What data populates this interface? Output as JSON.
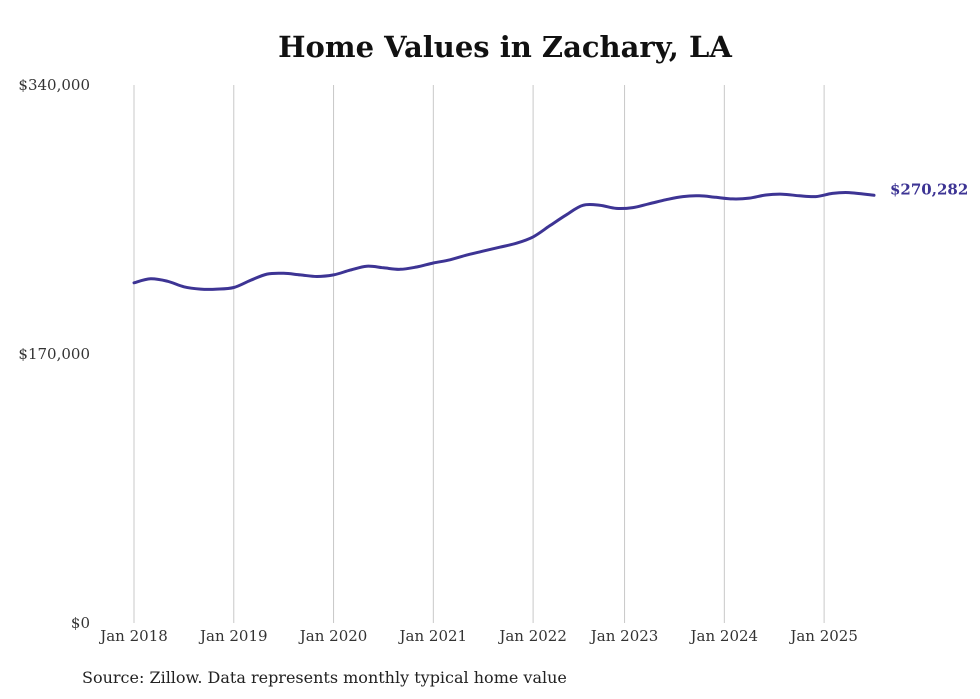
{
  "chart_data": {
    "type": "line",
    "title": "Home Values in Zachary, LA",
    "source": "Source: Zillow. Data represents monthly typical home value",
    "ylim": [
      0,
      340000
    ],
    "y_ticks": [
      {
        "value": 0,
        "label": "$0"
      },
      {
        "value": 170000,
        "label": "$170,000"
      },
      {
        "value": 340000,
        "label": "$340,000"
      }
    ],
    "xlim": [
      "2018-01",
      "2025-06"
    ],
    "x_ticks": [
      {
        "date": "2018-01",
        "label": "Jan 2018"
      },
      {
        "date": "2019-01",
        "label": "Jan 2019"
      },
      {
        "date": "2020-01",
        "label": "Jan 2020"
      },
      {
        "date": "2021-01",
        "label": "Jan 2021"
      },
      {
        "date": "2022-01",
        "label": "Jan 2022"
      },
      {
        "date": "2022-12",
        "label": "Jan 2023"
      },
      {
        "date": "2023-12",
        "label": "Jan 2024"
      },
      {
        "date": "2024-12",
        "label": "Jan 2025"
      }
    ],
    "grid": {
      "vertical": true,
      "horizontal": false
    },
    "line_color": "#3d3494",
    "series": [
      {
        "x": [
          "2018-01",
          "2018-03",
          "2018-05",
          "2018-07",
          "2018-09",
          "2018-11",
          "2019-01",
          "2019-03",
          "2019-05",
          "2019-07",
          "2019-09",
          "2019-11",
          "2020-01",
          "2020-03",
          "2020-05",
          "2020-07",
          "2020-09",
          "2020-11",
          "2021-01",
          "2021-03",
          "2021-05",
          "2021-07",
          "2021-09",
          "2021-11",
          "2022-01",
          "2022-03",
          "2022-05",
          "2022-07",
          "2022-09",
          "2022-11",
          "2023-01",
          "2023-03",
          "2023-05",
          "2023-07",
          "2023-09",
          "2023-11",
          "2024-01",
          "2024-03",
          "2024-05",
          "2024-07",
          "2024-09",
          "2024-11",
          "2025-01",
          "2025-03",
          "2025-06"
        ],
        "values": [
          215000,
          217500,
          216000,
          212500,
          211000,
          211000,
          212000,
          216500,
          220500,
          221000,
          220000,
          219000,
          220000,
          223000,
          225500,
          224500,
          223500,
          225000,
          227500,
          229500,
          232500,
          235000,
          237500,
          240000,
          244000,
          251000,
          258000,
          264000,
          264000,
          262000,
          262500,
          265000,
          267500,
          269500,
          270000,
          269000,
          268000,
          268500,
          270500,
          271000,
          270000,
          269500,
          271500,
          272000,
          270282
        ]
      }
    ],
    "end_label": "$270,282"
  }
}
